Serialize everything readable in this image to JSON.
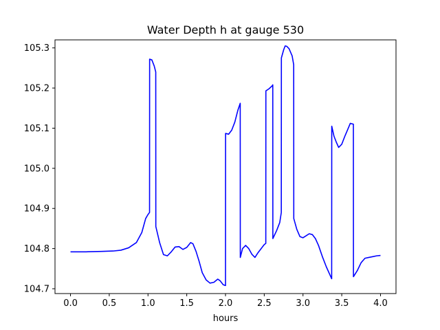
{
  "chart_data": {
    "type": "line",
    "title": "Water Depth h at gauge 530",
    "xlabel": "hours",
    "ylabel": "",
    "xlim": [
      -0.2,
      4.2
    ],
    "ylim": [
      104.688,
      105.32
    ],
    "xticks": [
      0.0,
      0.5,
      1.0,
      1.5,
      2.0,
      2.5,
      3.0,
      3.5,
      4.0
    ],
    "xtick_labels": [
      "0.0",
      "0.5",
      "1.0",
      "1.5",
      "2.0",
      "2.5",
      "3.0",
      "3.5",
      "4.0"
    ],
    "yticks": [
      104.7,
      104.8,
      104.9,
      105.0,
      105.1,
      105.2,
      105.3
    ],
    "ytick_labels": [
      "104.7",
      "104.8",
      "104.9",
      "105.0",
      "105.1",
      "105.2",
      "105.3"
    ],
    "grid": false,
    "series": [
      {
        "color": "#0000ff",
        "x": [
          0.0,
          0.2,
          0.4,
          0.55,
          0.65,
          0.75,
          0.85,
          0.92,
          0.97,
          1.0,
          1.02,
          1.021,
          1.05,
          1.08,
          1.1,
          1.101,
          1.15,
          1.2,
          1.25,
          1.3,
          1.35,
          1.4,
          1.45,
          1.5,
          1.55,
          1.58,
          1.62,
          1.66,
          1.7,
          1.75,
          1.8,
          1.85,
          1.9,
          1.93,
          1.97,
          2.0,
          2.001,
          2.04,
          2.08,
          2.12,
          2.16,
          2.19,
          2.191,
          2.22,
          2.26,
          2.3,
          2.34,
          2.38,
          2.42,
          2.46,
          2.5,
          2.52,
          2.521,
          2.56,
          2.6,
          2.61,
          2.611,
          2.66,
          2.7,
          2.72,
          2.721,
          2.75,
          2.77,
          2.79,
          2.82,
          2.86,
          2.88,
          2.881,
          2.92,
          2.96,
          3.0,
          3.04,
          3.08,
          3.12,
          3.16,
          3.2,
          3.25,
          3.3,
          3.37,
          3.371,
          3.4,
          3.43,
          3.46,
          3.5,
          3.54,
          3.58,
          3.61,
          3.65,
          3.651,
          3.7,
          3.75,
          3.8,
          3.85,
          3.9,
          3.95,
          4.0
        ],
        "values": [
          104.792,
          104.792,
          104.793,
          104.794,
          104.796,
          104.802,
          104.815,
          104.84,
          104.875,
          104.885,
          104.89,
          105.272,
          105.27,
          105.255,
          105.24,
          104.855,
          104.815,
          104.785,
          104.782,
          104.792,
          104.804,
          104.805,
          104.798,
          104.803,
          104.815,
          104.812,
          104.793,
          104.768,
          104.74,
          104.722,
          104.714,
          104.716,
          104.724,
          104.72,
          104.71,
          104.708,
          105.087,
          105.085,
          105.095,
          105.115,
          105.145,
          105.162,
          104.778,
          104.8,
          104.808,
          104.8,
          104.786,
          104.778,
          104.79,
          104.8,
          104.81,
          104.813,
          105.193,
          105.198,
          105.205,
          105.208,
          104.825,
          104.845,
          104.865,
          104.89,
          105.275,
          105.295,
          105.305,
          105.304,
          105.298,
          105.28,
          105.258,
          104.875,
          104.848,
          104.83,
          104.827,
          104.832,
          104.837,
          104.835,
          104.825,
          104.808,
          104.78,
          104.755,
          104.725,
          105.105,
          105.08,
          105.065,
          105.052,
          105.06,
          105.08,
          105.098,
          105.112,
          105.11,
          104.73,
          104.745,
          104.765,
          104.776,
          104.778,
          104.78,
          104.782,
          104.783
        ]
      }
    ]
  }
}
